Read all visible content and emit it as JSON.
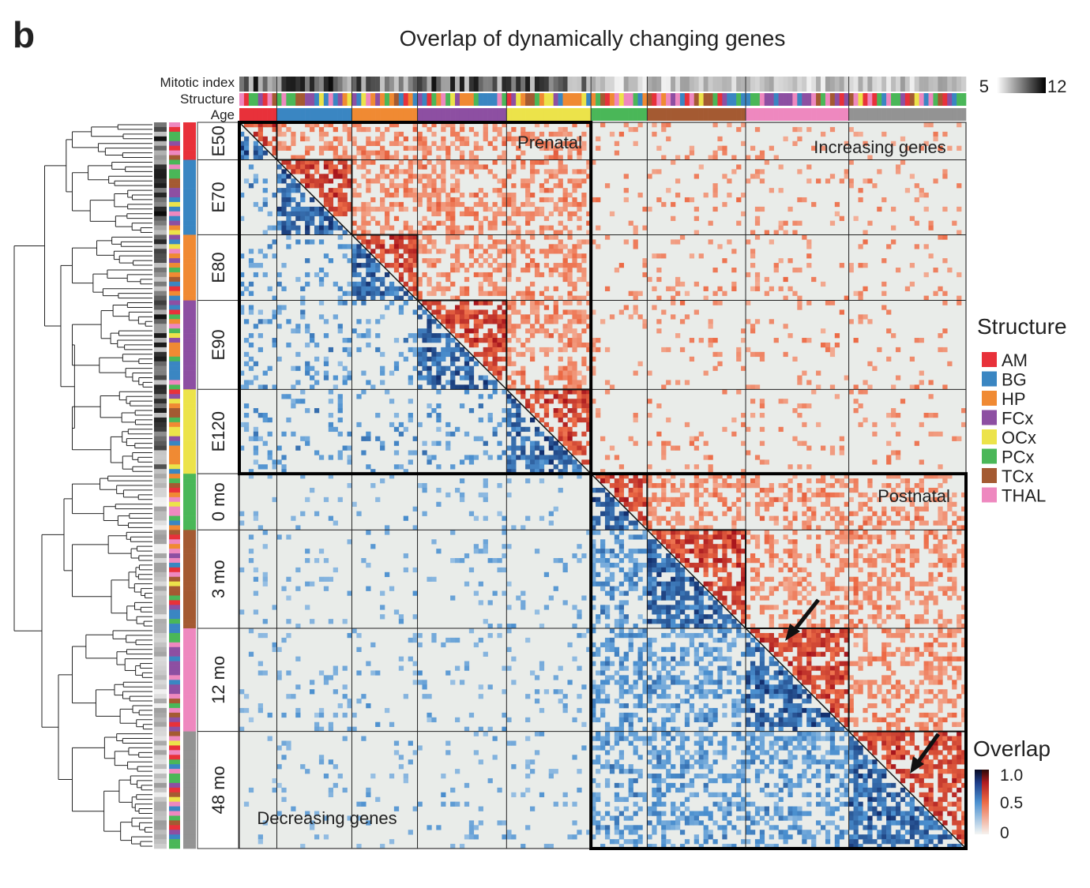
{
  "figure": {
    "panel_label": "b",
    "title": "Overlap of dynamically changing genes"
  },
  "chart_data": {
    "type": "heatmap",
    "title": "Overlap of dynamically changing genes",
    "age_groups": [
      {
        "label": "E50",
        "count": 8,
        "period": "prenatal"
      },
      {
        "label": "E70",
        "count": 16,
        "period": "prenatal"
      },
      {
        "label": "E80",
        "count": 14,
        "period": "prenatal"
      },
      {
        "label": "E90",
        "count": 19,
        "period": "prenatal"
      },
      {
        "label": "E120",
        "count": 18,
        "period": "prenatal"
      },
      {
        "label": "0 mo",
        "count": 12,
        "period": "postnatal"
      },
      {
        "label": "3 mo",
        "count": 21,
        "period": "postnatal"
      },
      {
        "label": "12 mo",
        "count": 22,
        "period": "postnatal"
      },
      {
        "label": "48 mo",
        "count": 25,
        "period": "postnatal"
      }
    ],
    "age_colors": [
      "#e8313a",
      "#3a86c2",
      "#f08a33",
      "#8d4fa2",
      "#ece34a",
      "#4ab758",
      "#a45a32",
      "#ee88bf",
      "#939393"
    ],
    "row_labels": {
      "mitotic": "Mitotic index",
      "structure": "Structure",
      "age": "Age"
    },
    "block_labels": {
      "prenatal": "Prenatal",
      "postnatal": "Postnatal",
      "increasing": "Increasing genes",
      "decreasing": "Decreasing genes"
    },
    "structure_legend": {
      "title": "Structure",
      "items": [
        {
          "label": "AM",
          "color": "#e8313a"
        },
        {
          "label": "BG",
          "color": "#3a86c2"
        },
        {
          "label": "HP",
          "color": "#f08a33"
        },
        {
          "label": "FCx",
          "color": "#8d4fa2"
        },
        {
          "label": "OCx",
          "color": "#ece34a"
        },
        {
          "label": "PCx",
          "color": "#4ab758"
        },
        {
          "label": "TCx",
          "color": "#a45a32"
        },
        {
          "label": "THAL",
          "color": "#ee88bf"
        }
      ]
    },
    "mitotic_scale": {
      "min_label": "5",
      "max_label": "12",
      "min": 5,
      "max": 12
    },
    "overlap_scale": {
      "title": "Overlap",
      "ticks": [
        "1.0",
        "0.5",
        "0"
      ],
      "min": 0,
      "max": 1
    },
    "background_color": "#e9ece9",
    "upper_color": "#e0462e",
    "lower_color": "#2f74b8",
    "highlighted_blocks": [
      {
        "group": "12 mo",
        "note": "arrow"
      },
      {
        "group": "48 mo",
        "note": "arrow"
      }
    ]
  }
}
